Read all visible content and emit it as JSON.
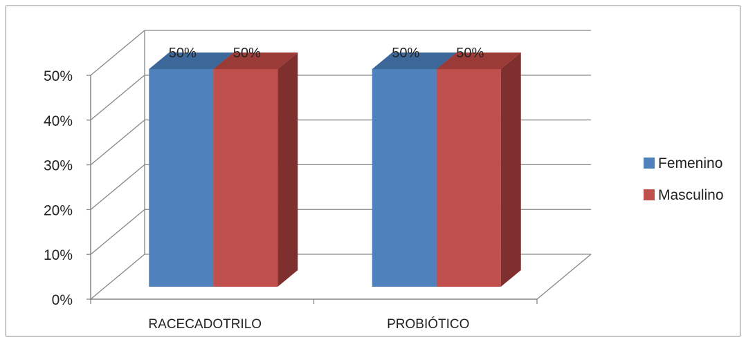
{
  "chart_data": {
    "type": "bar",
    "title": "",
    "xlabel": "",
    "ylabel": "",
    "categories": [
      "RACECADOTRILO",
      "PROBIÓTICO"
    ],
    "series": [
      {
        "name": "Femenino",
        "values": [
          50,
          50
        ],
        "data_labels": [
          "50%",
          "50%"
        ],
        "color": "#4f81bd",
        "side_color": "#3a6293",
        "top_color": "#3c6799"
      },
      {
        "name": "Masculino",
        "values": [
          50,
          50
        ],
        "data_labels": [
          "50%",
          "50%"
        ],
        "color": "#c0504d",
        "side_color": "#7f302e",
        "top_color": "#9b3b38"
      }
    ],
    "ylim": [
      0,
      50
    ],
    "yticks": [
      0,
      10,
      20,
      30,
      40,
      50
    ],
    "ytick_labels": [
      "0%",
      "10%",
      "20%",
      "30%",
      "40%",
      "50%"
    ],
    "grid": true,
    "legend_position": "right",
    "style": "3d-clustered-column"
  }
}
